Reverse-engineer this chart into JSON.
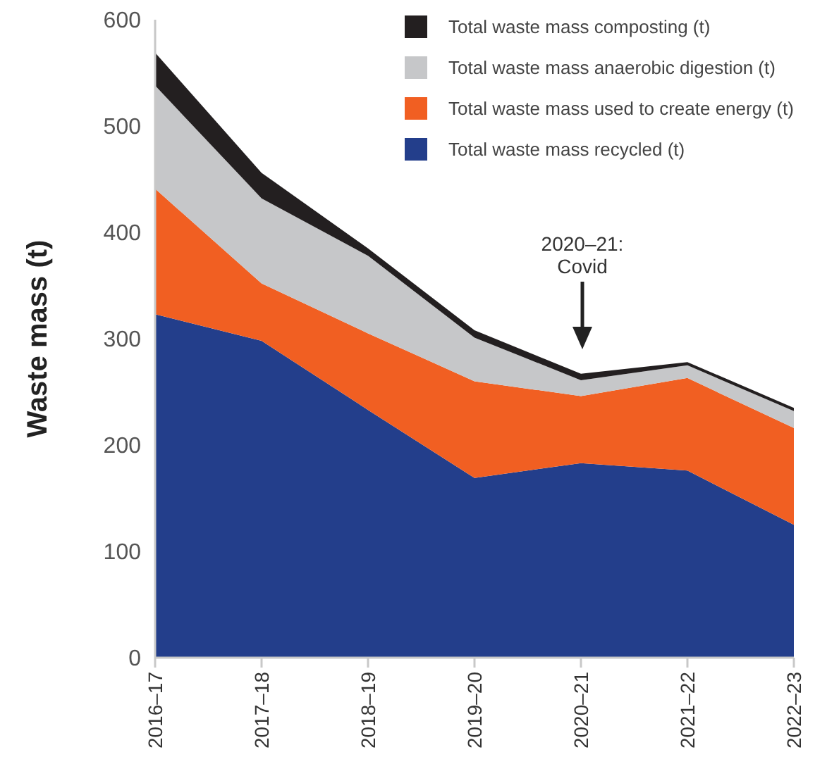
{
  "chart_data": {
    "type": "area",
    "stacked": true,
    "ylabel": "Waste mass (t)",
    "categories": [
      "2016–17",
      "2017–18",
      "2018–19",
      "2019–20",
      "2020–21",
      "2021–22",
      "2022–23"
    ],
    "series": [
      {
        "name": "Total waste mass recycled (t)",
        "color": "#233e8b",
        "values": [
          323,
          298,
          233,
          169,
          183,
          176,
          125
        ]
      },
      {
        "name": "Total waste mass used to create energy (t)",
        "color": "#f15f22",
        "values": [
          118,
          54,
          72,
          91,
          63,
          87,
          91
        ]
      },
      {
        "name": "Total waste mass anaerobic digestion (t)",
        "color": "#c6c7c9",
        "values": [
          97,
          80,
          73,
          41,
          15,
          12,
          16
        ]
      },
      {
        "name": "Total waste mass composting (t)",
        "color": "#231f20",
        "values": [
          31,
          24,
          7,
          7,
          6,
          3,
          3
        ]
      }
    ],
    "ylim": [
      0,
      600
    ],
    "yticks": [
      0,
      100,
      200,
      300,
      400,
      500,
      600
    ],
    "grid": false,
    "legend": "top right",
    "annotations": [
      "2020–21:\nCovid"
    ]
  }
}
